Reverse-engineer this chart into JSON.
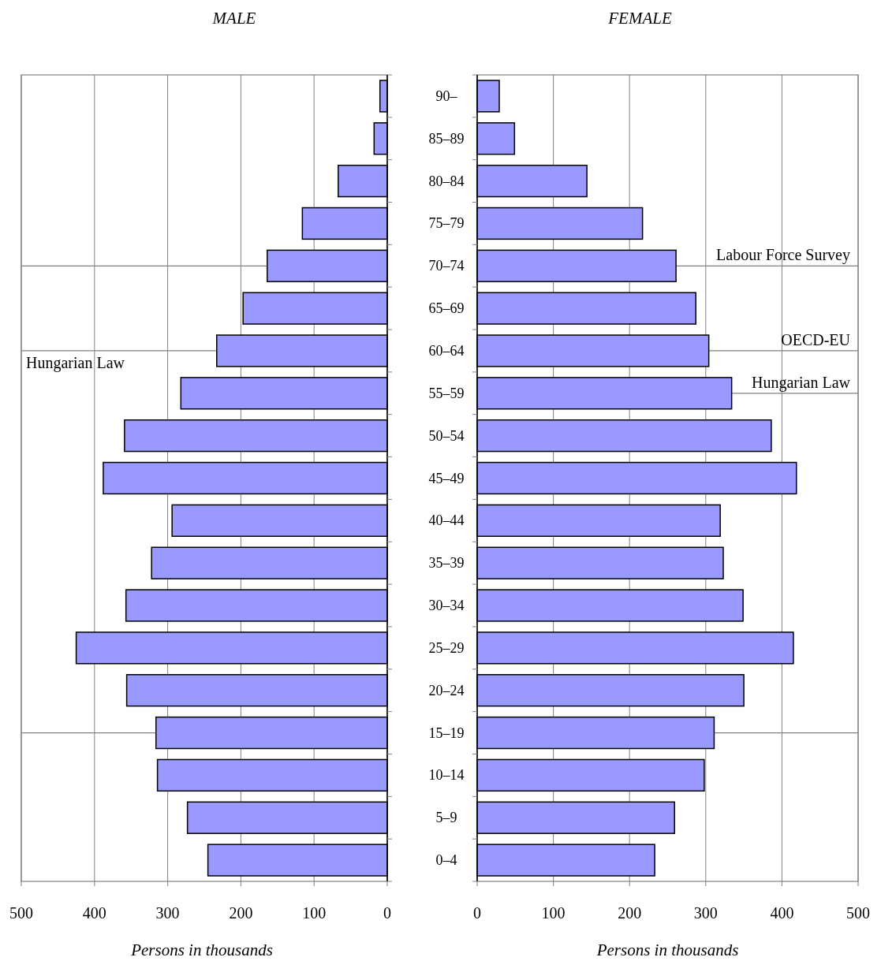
{
  "chart_data": [
    {
      "type": "bar",
      "orientation": "horizontal",
      "title": "MALE",
      "xlabel": "Persons in thousands",
      "categories": [
        "90–",
        "85–89",
        "80–84",
        "75–79",
        "70–74",
        "65–69",
        "60–64",
        "55–59",
        "50–54",
        "45–49",
        "40–44",
        "35–39",
        "30–34",
        "25–29",
        "20–24",
        "15–19",
        "10–14",
        "5–9",
        "0–4"
      ],
      "values": [
        10,
        18,
        67,
        116,
        164,
        197,
        233,
        282,
        359,
        388,
        294,
        322,
        357,
        425,
        356,
        316,
        314,
        273,
        245
      ],
      "color": "#9999ff",
      "xlim": [
        500,
        0
      ],
      "xticks": [
        500,
        400,
        300,
        200,
        100,
        0
      ],
      "grid": "x",
      "tick_labels": "x",
      "ref_lines": [
        {
          "axis": "y",
          "value": "70–74"
        },
        {
          "axis": "y",
          "value": "60–64",
          "label": "Hungarian Law"
        },
        {
          "axis": "y",
          "value": "15–19"
        }
      ]
    },
    {
      "type": "bar",
      "orientation": "horizontal",
      "title": "FEMALE",
      "xlabel": "Persons in thousands",
      "categories": [
        "90–",
        "85–89",
        "80–84",
        "75–79",
        "70–74",
        "65–69",
        "60–64",
        "55–59",
        "50–54",
        "45–49",
        "40–44",
        "35–39",
        "30–34",
        "25–29",
        "20–24",
        "15–19",
        "10–14",
        "5–9",
        "0–4"
      ],
      "values": [
        29,
        49,
        144,
        217,
        261,
        287,
        304,
        334,
        386,
        419,
        319,
        323,
        349,
        415,
        350,
        311,
        298,
        259,
        233
      ],
      "color": "#9999ff",
      "xlim": [
        0,
        500
      ],
      "xticks": [
        0,
        100,
        200,
        300,
        400,
        500
      ],
      "grid": "x",
      "ref_lines": [
        {
          "axis": "y",
          "value": "70–74",
          "label": "Labour Force Survey"
        },
        {
          "axis": "y",
          "value": "60–64",
          "label": "OECD-EU"
        },
        {
          "axis": "y",
          "value": "55–59",
          "label": "Hungarian Law"
        },
        {
          "axis": "y",
          "value": "15–19"
        }
      ]
    }
  ]
}
